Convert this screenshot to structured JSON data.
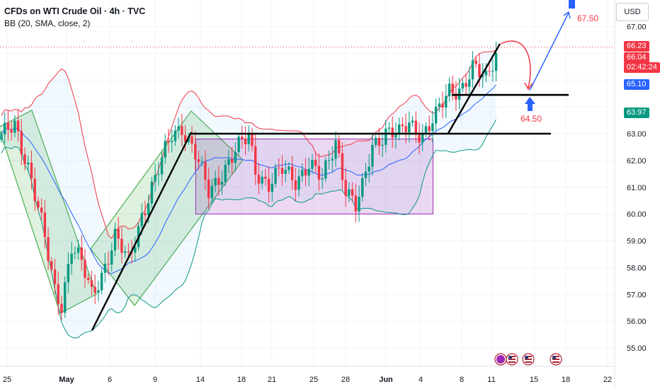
{
  "header": {
    "title": "CFDs on WTI Crude Oil · 4h · TVC",
    "indicator": "BB (20, SMA, close, 2)",
    "currency": "USD"
  },
  "price_badges": [
    {
      "value": "66.23",
      "color": "#f23645"
    },
    {
      "value": "66.04",
      "color": "#f23645"
    },
    {
      "value": "02:42:24",
      "color": "#f23645"
    },
    {
      "value": "65.10",
      "color": "#2962ff"
    },
    {
      "value": "63.97",
      "color": "#089981"
    }
  ],
  "annotations": {
    "target_high": "67.50",
    "target_low": "64.50"
  },
  "colors": {
    "up": "#089981",
    "down": "#f23645",
    "band_upper": "#f23645",
    "band_lower": "#089981",
    "basis": "#2962ff",
    "channel": "#4caf50",
    "range_box": "#9c27b0"
  },
  "chart_data": {
    "type": "candlestick",
    "timeframe": "4h",
    "y_ticks": [
      55.0,
      56.0,
      57.0,
      58.0,
      59.0,
      60.0,
      61.0,
      62.0,
      63.0,
      64.0,
      65.0,
      66.0,
      67.0
    ],
    "y_tick_labels": [
      "55.00",
      "56.00",
      "57.00",
      "58.00",
      "59.00",
      "60.00",
      "61.00",
      "62.00",
      "63.00",
      "",
      "",
      "",
      "67.00"
    ],
    "x_tick_labels": [
      "25",
      "May",
      "6",
      "9",
      "14",
      "18",
      "21",
      "25",
      "28",
      "Jun",
      "4",
      "8",
      "11",
      "15",
      "18",
      "22"
    ],
    "ylim": [
      54.5,
      67.8
    ],
    "price_path": [
      {
        "session": 0,
        "close": 62.8
      },
      {
        "session": 4,
        "close": 63.4
      },
      {
        "session": 8,
        "close": 61.8
      },
      {
        "session": 12,
        "close": 59.6
      },
      {
        "session": 16,
        "close": 57.2
      },
      {
        "session": 18,
        "close": 56.7
      },
      {
        "session": 21,
        "close": 58.8
      },
      {
        "session": 24,
        "close": 58.1
      },
      {
        "session": 27,
        "close": 57.0
      },
      {
        "session": 30,
        "close": 57.8
      },
      {
        "session": 34,
        "close": 59.1
      },
      {
        "session": 38,
        "close": 58.2
      },
      {
        "session": 42,
        "close": 60.0
      },
      {
        "session": 47,
        "close": 61.6
      },
      {
        "session": 51,
        "close": 63.0
      },
      {
        "session": 54,
        "close": 63.3
      },
      {
        "session": 58,
        "close": 62.2
      },
      {
        "session": 62,
        "close": 60.8
      },
      {
        "session": 66,
        "close": 61.6
      },
      {
        "session": 70,
        "close": 62.3
      },
      {
        "session": 74,
        "close": 62.9
      },
      {
        "session": 76,
        "close": 61.7
      },
      {
        "session": 80,
        "close": 61.1
      },
      {
        "session": 84,
        "close": 61.6
      },
      {
        "session": 88,
        "close": 61.3
      },
      {
        "session": 92,
        "close": 61.9
      },
      {
        "session": 96,
        "close": 61.2
      },
      {
        "session": 100,
        "close": 62.8
      },
      {
        "session": 103,
        "close": 61.0
      },
      {
        "session": 106,
        "close": 60.2
      },
      {
        "session": 108,
        "close": 60.9
      },
      {
        "session": 111,
        "close": 62.6
      },
      {
        "session": 115,
        "close": 63.1
      },
      {
        "session": 119,
        "close": 62.9
      },
      {
        "session": 122,
        "close": 63.4
      },
      {
        "session": 126,
        "close": 63.0
      },
      {
        "session": 130,
        "close": 63.6
      },
      {
        "session": 134,
        "close": 64.6
      },
      {
        "session": 138,
        "close": 64.8
      },
      {
        "session": 141,
        "close": 65.4
      },
      {
        "session": 145,
        "close": 65.0
      },
      {
        "session": 148,
        "close": 66.1
      }
    ],
    "resistance_levels": [
      63.0,
      64.5
    ],
    "range_box": {
      "from_session": 56,
      "to_session": 127,
      "low": 60.0,
      "high": 62.8
    },
    "projection": {
      "peak": 66.8,
      "pullback": 64.5,
      "target": 67.5
    }
  }
}
